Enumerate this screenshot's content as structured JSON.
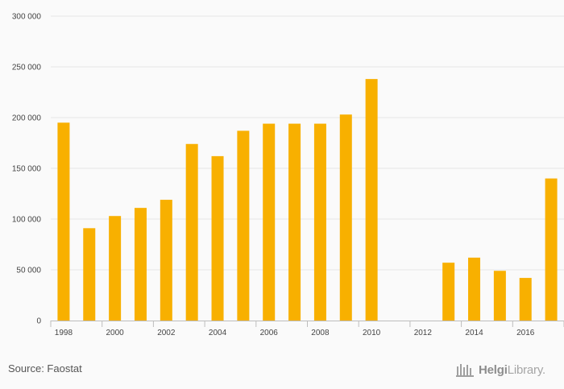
{
  "chart_data": {
    "type": "bar",
    "x": [
      1998,
      1999,
      2000,
      2001,
      2002,
      2003,
      2004,
      2005,
      2006,
      2007,
      2008,
      2009,
      2010,
      2011,
      2012,
      2013,
      2014,
      2015,
      2016,
      2017
    ],
    "values": [
      195000,
      91000,
      103000,
      111000,
      119000,
      174000,
      162000,
      187000,
      194000,
      194000,
      194000,
      203000,
      238000,
      null,
      null,
      57000,
      62000,
      49000,
      42000,
      140000
    ],
    "x_tick_labels": [
      "1998",
      "2000",
      "2002",
      "2004",
      "2006",
      "2008",
      "2010",
      "2012",
      "2014",
      "2016"
    ],
    "y_ticks": [
      0,
      50000,
      100000,
      150000,
      200000,
      250000,
      300000
    ],
    "y_tick_labels": [
      "0",
      "50 000",
      "100 000",
      "150 000",
      "200 000",
      "250 000",
      "300 000"
    ],
    "ylim": [
      0,
      300000
    ],
    "title": "",
    "xlabel": "",
    "ylabel": "",
    "grid": true,
    "legend": "none",
    "bar_color": "#f8b000",
    "grid_color": "#e6e6e6",
    "axis_color": "#bdbdbd"
  },
  "footer": {
    "source": "Source: Faostat",
    "brand_part1": "Helgi",
    "brand_part2": "Library.",
    "brand_icon": "helgi-library-logo-icon"
  }
}
